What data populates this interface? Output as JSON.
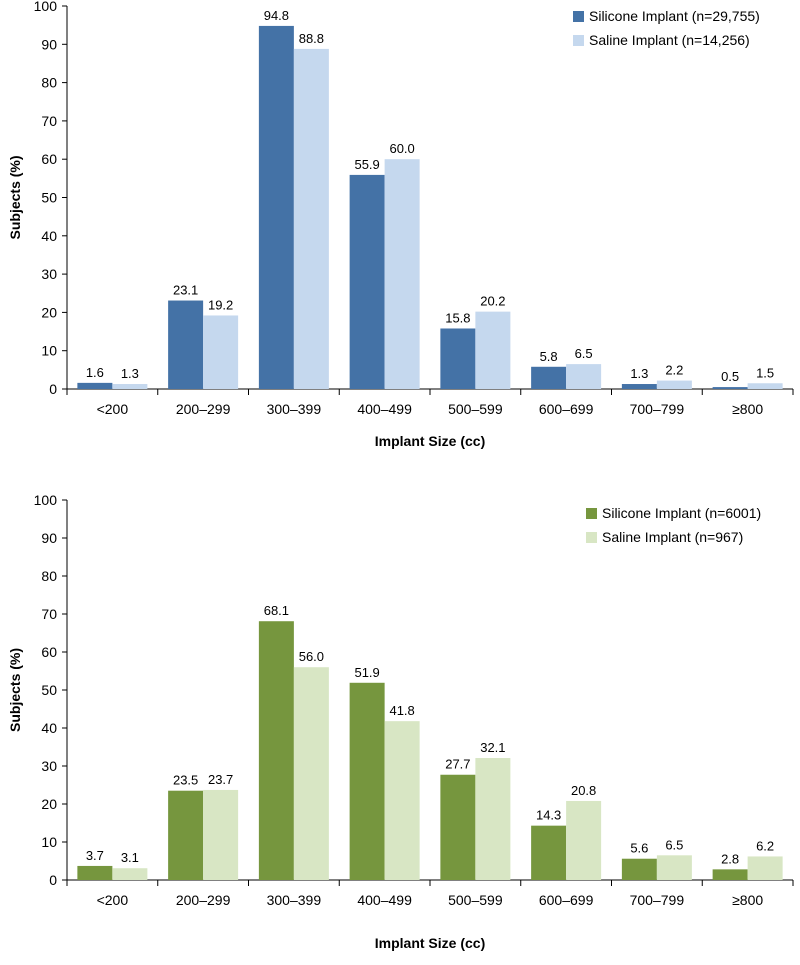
{
  "chart_data": [
    {
      "type": "bar",
      "xlabel": "Implant Size (cc)",
      "ylabel": "Subjects (%)",
      "ylim": [
        0,
        100
      ],
      "yticks": [
        0,
        10,
        20,
        30,
        40,
        50,
        60,
        70,
        80,
        90,
        100
      ],
      "categories": [
        "<200",
        "200–299",
        "300–399",
        "400–499",
        "500–599",
        "600–699",
        "700–799",
        "≥800"
      ],
      "legend_position": "top-right",
      "grid": false,
      "series": [
        {
          "name": "Silicone Implant (n=29,755)",
          "color": "#4472a6",
          "values": [
            1.6,
            23.1,
            94.8,
            55.9,
            15.8,
            5.8,
            1.3,
            0.5
          ],
          "labels": [
            "1.6",
            "23.1",
            "94.8",
            "55.9",
            "15.8",
            "5.8",
            "1.3",
            "0.5"
          ]
        },
        {
          "name": "Saline Implant (n=14,256)",
          "color": "#c5d8ee",
          "values": [
            1.3,
            19.2,
            88.8,
            60.0,
            20.2,
            6.5,
            2.2,
            1.5
          ],
          "labels": [
            "1.3",
            "19.2",
            "88.8",
            "60.0",
            "20.2",
            "6.5",
            "2.2",
            "1.5"
          ]
        }
      ]
    },
    {
      "type": "bar",
      "xlabel": "Implant Size (cc)",
      "ylabel": "Subjects (%)",
      "ylim": [
        0,
        100
      ],
      "yticks": [
        0,
        10,
        20,
        30,
        40,
        50,
        60,
        70,
        80,
        90,
        100
      ],
      "categories": [
        "<200",
        "200–299",
        "300–399",
        "400–499",
        "500–599",
        "600–699",
        "700–799",
        "≥800"
      ],
      "legend_position": "top-right",
      "grid": false,
      "series": [
        {
          "name": "Silicone Implant (n=6001)",
          "color": "#76963e",
          "values": [
            3.7,
            23.5,
            68.1,
            51.9,
            27.7,
            14.3,
            5.6,
            2.8
          ],
          "labels": [
            "3.7",
            "23.5",
            "68.1",
            "51.9",
            "27.7",
            "14.3",
            "5.6",
            "2.8"
          ]
        },
        {
          "name": "Saline Implant (n=967)",
          "color": "#d8e6c4",
          "values": [
            3.1,
            23.7,
            56.0,
            41.8,
            32.1,
            20.8,
            6.5,
            6.2
          ],
          "labels": [
            "3.1",
            "23.7",
            "56.0",
            "41.8",
            "32.1",
            "20.8",
            "6.5",
            "6.2"
          ]
        }
      ]
    }
  ]
}
